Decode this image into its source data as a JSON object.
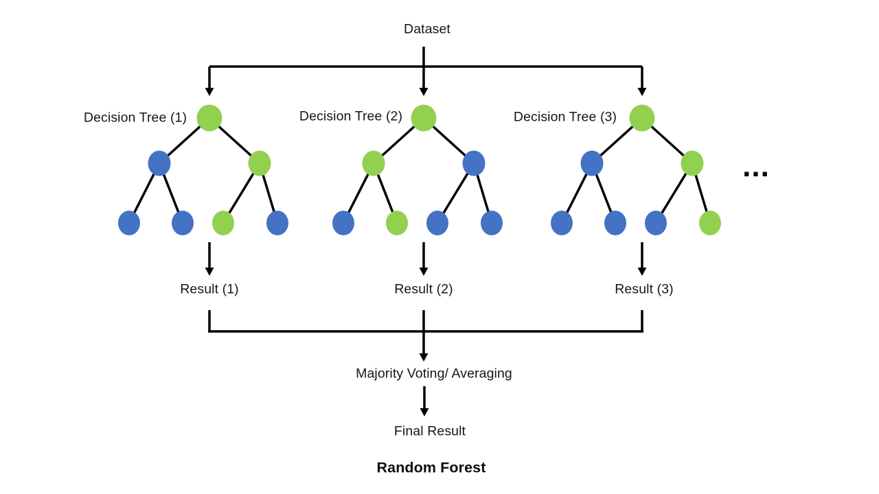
{
  "diagram": {
    "dataset_label": "Dataset",
    "ellipsis": "...",
    "majority_label": "Majority Voting/ Averaging",
    "final_result_label": "Final Result",
    "title": "Random Forest",
    "colors": {
      "node_green": "#92D050",
      "node_blue": "#4472C4",
      "line": "#000000",
      "text": "#161616",
      "background": "#ffffff"
    },
    "trees": [
      {
        "label": "Decision Tree (1)",
        "result_label": "Result (1)",
        "root": "green",
        "children": [
          "blue",
          "green"
        ],
        "leaves": [
          "blue",
          "blue",
          "green",
          "blue"
        ]
      },
      {
        "label": "Decision Tree (2)",
        "result_label": "Result (2)",
        "root": "green",
        "children": [
          "green",
          "blue"
        ],
        "leaves": [
          "blue",
          "green",
          "blue",
          "blue"
        ]
      },
      {
        "label": "Decision Tree (3)",
        "result_label": "Result (3)",
        "root": "green",
        "children": [
          "blue",
          "green"
        ],
        "leaves": [
          "blue",
          "blue",
          "blue",
          "green"
        ]
      }
    ]
  }
}
